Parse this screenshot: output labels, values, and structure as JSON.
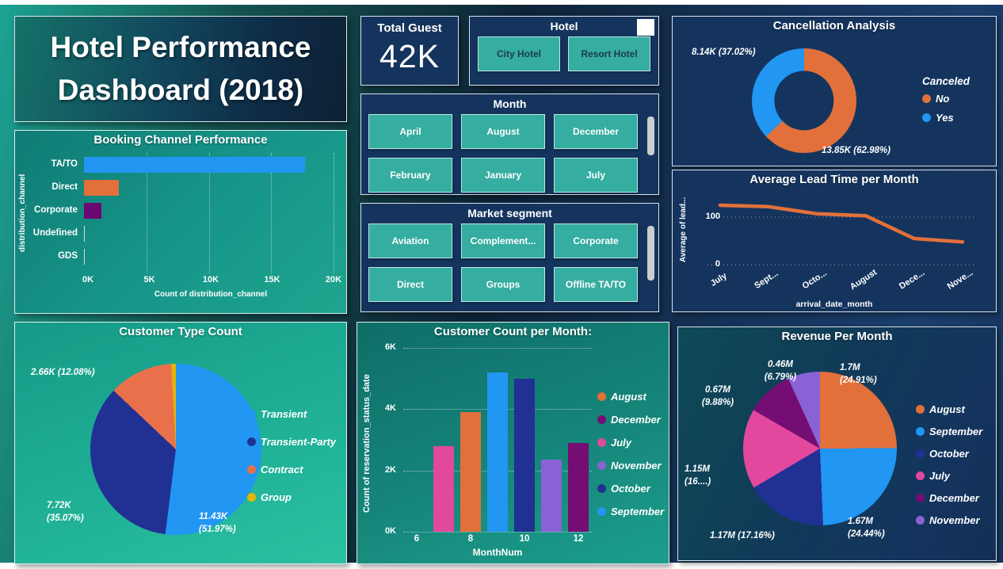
{
  "title": {
    "line1": "Hotel Performance",
    "line2": "Dashboard (2018)"
  },
  "cards": {
    "total_guest": {
      "title": "Total Guest",
      "value": "42K"
    }
  },
  "slicers": {
    "hotel": {
      "title": "Hotel",
      "options": [
        "City Hotel",
        "Resort Hotel"
      ],
      "clear_icon": "eraser-icon"
    },
    "month": {
      "title": "Month",
      "options": [
        "April",
        "August",
        "December",
        "February",
        "January",
        "July"
      ]
    },
    "market_segment": {
      "title": "Market segment",
      "options": [
        "Aviation",
        "Complement...",
        "Corporate",
        "Direct",
        "Groups",
        "Offline TA/TO"
      ]
    }
  },
  "panels": {
    "booking": {
      "title": "Booking Channel Performance"
    },
    "cancellation": {
      "title": "Cancellation Analysis",
      "legend_title": "Canceled"
    },
    "lead_time": {
      "title": "Average Lead Time per Month"
    },
    "customer_type": {
      "title": "Customer Type Count"
    },
    "customer_count": {
      "title": "Customer Count per Month:"
    },
    "revenue": {
      "title": "Revenue Per Month"
    }
  },
  "colors": {
    "panel_navy": "#14345e",
    "slicer_button": "#35ada0",
    "accent_orange": "#e2703a",
    "accent_blue": "#2196f3",
    "accent_darkblue": "#203193",
    "accent_pink": "#e2489d",
    "accent_purple": "#740e74",
    "accent_lightpurple": "#8b62d6",
    "accent_yellow": "#e3b505"
  },
  "chart_data": [
    {
      "id": "booking_channel",
      "type": "bar",
      "orientation": "horizontal",
      "title": "Booking Channel Performance",
      "categories": [
        "TA/TO",
        "Direct",
        "Corporate",
        "Undefined",
        "GDS"
      ],
      "values": [
        17700,
        2800,
        1400,
        60,
        50
      ],
      "colors": [
        "#2196f3",
        "#e2703a",
        "#6b0772",
        "#dadada",
        "#dadada"
      ],
      "xlabel": "Count of distribution_channel",
      "ylabel": "distribution_channel",
      "x_ticks": [
        "0K",
        "5K",
        "10K",
        "15K",
        "20K"
      ],
      "xlim": [
        0,
        20000
      ],
      "grid": "dotted-vertical"
    },
    {
      "id": "cancellation",
      "type": "pie",
      "subtype": "donut",
      "title": "Cancellation Analysis",
      "legend_title": "Canceled",
      "legend_position": "right",
      "slices": [
        {
          "name": "No",
          "value": "13.85K",
          "pct": 62.98,
          "color": "#e2703a",
          "callout": "13.85K (62.98%)"
        },
        {
          "name": "Yes",
          "value": "8.14K",
          "pct": 37.02,
          "color": "#2196f3",
          "callout": "8.14K (37.02%)"
        }
      ]
    },
    {
      "id": "lead_time",
      "type": "line",
      "title": "Average Lead Time per Month",
      "x": [
        "July",
        "Sept...",
        "Octo...",
        "August",
        "Dece...",
        "Nove..."
      ],
      "values": [
        125,
        122,
        107,
        103,
        55,
        48
      ],
      "ylabel": "Average of lead...",
      "xlabel": "arrival_date_month",
      "y_ticks": [
        100,
        0
      ],
      "ylim": [
        0,
        150
      ],
      "line_color": "#e2703a",
      "grid": "dotted-horizontal"
    },
    {
      "id": "customer_type",
      "type": "pie",
      "title": "Customer Type Count",
      "legend_position": "right",
      "slices": [
        {
          "name": "Transient",
          "value": "11.43K",
          "pct": 51.97,
          "color": "#2196f3",
          "callout": "11.43K (51.97%)"
        },
        {
          "name": "Transient-Party",
          "value": "7.72K",
          "pct": 35.07,
          "color": "#203193",
          "callout": "7.72K (35.07%)"
        },
        {
          "name": "Contract",
          "value": "2.66K",
          "pct": 12.08,
          "color": "#e8714b",
          "callout": "2.66K (12.08%)"
        },
        {
          "name": "Group",
          "pct": 0.88,
          "color": "#e3b505"
        }
      ]
    },
    {
      "id": "customer_count",
      "type": "bar",
      "orientation": "vertical",
      "title": "Customer Count per Month:",
      "xlabel": "MonthNum",
      "ylabel": "Count of reservation_status_date",
      "x_ticks": [
        6,
        8,
        10,
        12
      ],
      "y_ticks": [
        "6K",
        "4K",
        "2K",
        "0K"
      ],
      "ylim": [
        0,
        6000
      ],
      "xlim": [
        5.5,
        12.5
      ],
      "grid": "dotted-both",
      "series": [
        {
          "name": "July",
          "month": 7,
          "value": 2800,
          "color": "#e2489d"
        },
        {
          "name": "August",
          "month": 8,
          "value": 3900,
          "color": "#e2703a"
        },
        {
          "name": "September",
          "month": 9,
          "value": 5200,
          "color": "#2196f3"
        },
        {
          "name": "October",
          "month": 10,
          "value": 5000,
          "color": "#203193"
        },
        {
          "name": "November",
          "month": 11,
          "value": 2350,
          "color": "#8b62d6"
        },
        {
          "name": "December",
          "month": 12,
          "value": 2900,
          "color": "#740e74"
        }
      ],
      "legend_order": [
        "August",
        "December",
        "July",
        "November",
        "October",
        "September"
      ]
    },
    {
      "id": "revenue",
      "type": "pie",
      "title": "Revenue Per Month",
      "legend_position": "right",
      "slices": [
        {
          "name": "August",
          "value": "1.7M",
          "pct": 24.91,
          "color": "#e2703a",
          "callout": "1.7M (24.91%)"
        },
        {
          "name": "September",
          "value": "1.67M",
          "pct": 24.44,
          "color": "#2196f3",
          "callout": "1.67M (24.44%)"
        },
        {
          "name": "October",
          "value": "1.17M",
          "pct": 17.16,
          "color": "#203193",
          "callout": "1.17M (17.16%)"
        },
        {
          "name": "July",
          "value": "1.15M",
          "pct": 16.82,
          "color": "#e2489d",
          "callout": "1.15M (16....)"
        },
        {
          "name": "December",
          "value": "0.67M",
          "pct": 9.88,
          "color": "#740e74",
          "callout": "0.67M (9.88%)"
        },
        {
          "name": "November",
          "value": "0.46M",
          "pct": 6.79,
          "color": "#8b62d6",
          "callout": "0.46M (6.79%)"
        }
      ]
    }
  ]
}
